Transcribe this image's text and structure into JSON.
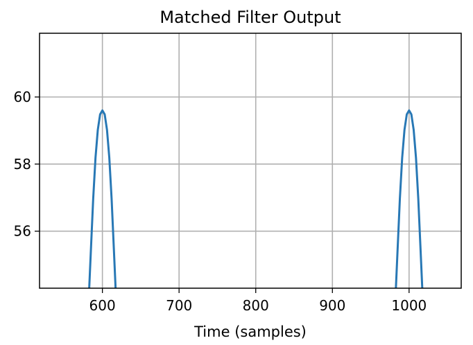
{
  "chart_data": {
    "type": "line",
    "title": "Matched Filter Output",
    "xlabel": "Time (samples)",
    "ylabel": "",
    "xlim": [
      518,
      1068
    ],
    "ylim": [
      54.3,
      61.9
    ],
    "x_ticks": [
      600,
      700,
      800,
      900,
      1000
    ],
    "y_ticks": [
      56,
      58,
      60
    ],
    "grid": true,
    "line_color": "#2878b5",
    "series": [
      {
        "segments": [
          {
            "x": [
              582.8,
              585,
              588,
              591,
              594,
              597,
              600,
              603,
              606,
              609,
              612,
              615,
              617.2
            ],
            "y": [
              54.3,
              55.44,
              56.97,
              58.19,
              59.02,
              59.48,
              59.6,
              59.48,
              59.02,
              58.19,
              56.97,
              55.44,
              54.3
            ]
          },
          {
            "x": [
              982.8,
              985,
              988,
              991,
              994,
              997,
              1000,
              1003,
              1006,
              1009,
              1012,
              1015,
              1017.2
            ],
            "y": [
              54.3,
              55.44,
              56.97,
              58.19,
              59.02,
              59.48,
              59.6,
              59.48,
              59.02,
              58.19,
              56.97,
              55.44,
              54.3
            ]
          }
        ]
      }
    ]
  }
}
